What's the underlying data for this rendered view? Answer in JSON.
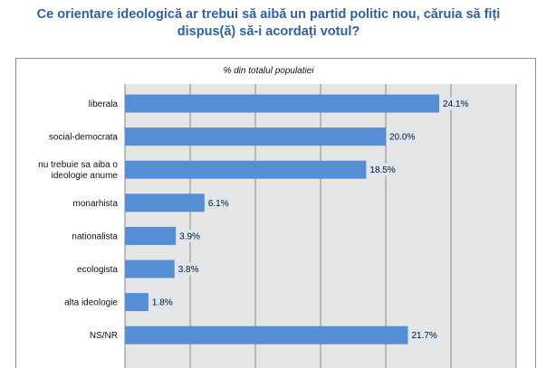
{
  "title_line1": "Ce orientare ideologică ar trebui să aibă un partid politic nou, căruia să fiți",
  "title_line2": "dispus(ă) să-i acordați votul?",
  "chart_data": {
    "type": "bar",
    "orientation": "horizontal",
    "subtitle": "% din totalul populatiei",
    "categories": [
      [
        "liberala"
      ],
      [
        "social-democrata"
      ],
      [
        "nu trebuie sa aiba o",
        "ideologie anume"
      ],
      [
        "monarhista"
      ],
      [
        "nationalista"
      ],
      [
        "ecologista"
      ],
      [
        "alta ideologie"
      ],
      [
        "NS/NR"
      ]
    ],
    "values": [
      24.1,
      20.0,
      18.5,
      6.1,
      3.9,
      3.8,
      1.8,
      21.7
    ],
    "value_labels": [
      "24.1%",
      "20.0%",
      "18.5%",
      "6.1%",
      "3.9%",
      "3.8%",
      "1.8%",
      "21.7%"
    ],
    "xlim": [
      0,
      30
    ],
    "grid": true,
    "bar_color": "#558ed5",
    "plot_background": "#e6e6e6",
    "label_background": "#dce6f2"
  }
}
